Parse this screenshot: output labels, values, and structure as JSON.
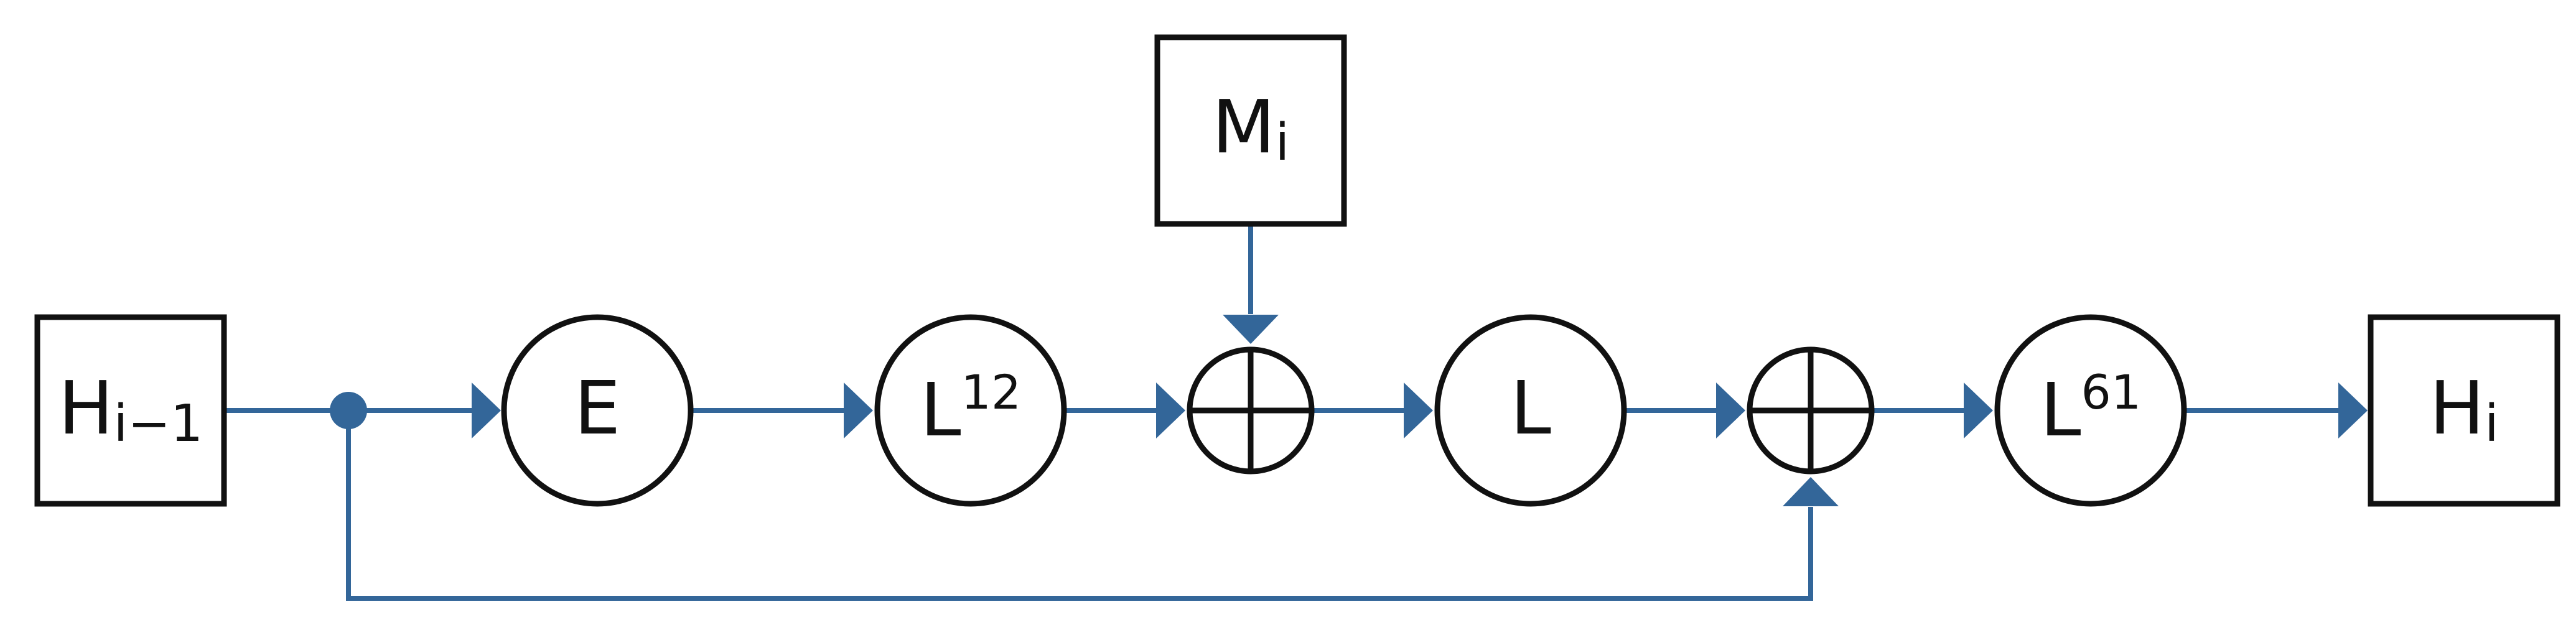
{
  "diagram": {
    "colors": {
      "edge": "#336699",
      "stroke": "#111111",
      "background": "#ffffff"
    },
    "nodes": {
      "h_prev": {
        "main": "H",
        "sub": "i−1"
      },
      "e": {
        "main": "E"
      },
      "l12": {
        "main": "L",
        "sup": "12"
      },
      "m": {
        "main": "M",
        "sub": "i"
      },
      "l": {
        "main": "L"
      },
      "l61": {
        "main": "L",
        "sup": "61"
      },
      "h_out": {
        "main": "H",
        "sub": "i"
      }
    }
  }
}
